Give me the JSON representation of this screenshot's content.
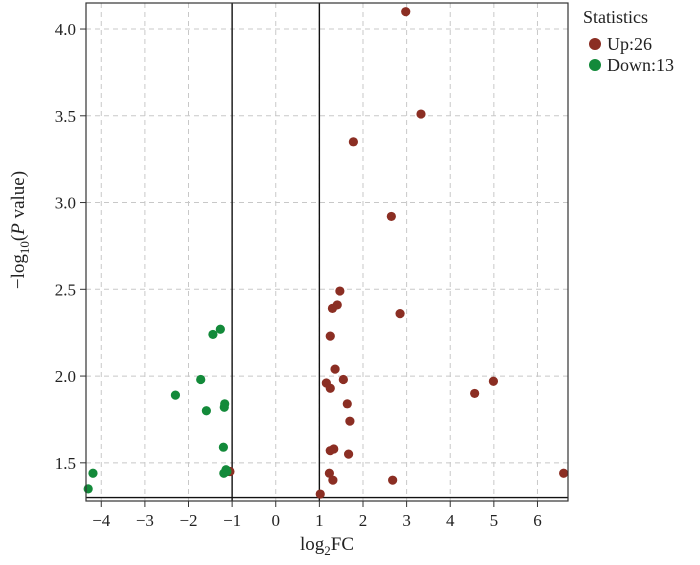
{
  "chart_data": {
    "type": "scatter",
    "xlabel": {
      "base": "log",
      "sub": "2",
      "rest": "FC"
    },
    "ylabel": {
      "minus": "−log",
      "sub": "10",
      "open": "(",
      "italic": "P",
      "rest": " value)"
    },
    "xlim": [
      -4.35,
      6.7
    ],
    "ylim": [
      1.28,
      4.15
    ],
    "x_ticks": [
      -4,
      -3,
      -2,
      -1,
      0,
      1,
      2,
      3,
      4,
      5,
      6
    ],
    "x_tick_labels": [
      "−4",
      "−3",
      "−2",
      "−1",
      "0",
      "1",
      "2",
      "3",
      "4",
      "5",
      "6"
    ],
    "y_ticks": [
      1.5,
      2.0,
      2.5,
      3.0,
      3.5,
      4.0
    ],
    "y_tick_labels": [
      "1.5",
      "2.0",
      "2.5",
      "3.0",
      "3.5",
      "4.0"
    ],
    "grid": true,
    "vlines": [
      -1,
      1
    ],
    "hline": 1.3,
    "legend": {
      "title": "Statistics",
      "position": "right-outside-top",
      "entries": [
        {
          "label": "Up:26",
          "color": "#8b2e23"
        },
        {
          "label": "Down:13",
          "color": "#138a3a"
        }
      ]
    },
    "series": [
      {
        "name": "Up:26",
        "color": "#8b2e23",
        "points": [
          [
            2.98,
            4.1
          ],
          [
            3.33,
            3.51
          ],
          [
            1.78,
            3.35
          ],
          [
            2.65,
            2.92
          ],
          [
            2.85,
            2.36
          ],
          [
            1.47,
            2.49
          ],
          [
            1.41,
            2.41
          ],
          [
            1.3,
            2.39
          ],
          [
            1.25,
            2.23
          ],
          [
            1.36,
            2.04
          ],
          [
            1.55,
            1.98
          ],
          [
            1.16,
            1.96
          ],
          [
            1.25,
            1.93
          ],
          [
            1.64,
            1.84
          ],
          [
            1.7,
            1.74
          ],
          [
            4.99,
            1.97
          ],
          [
            4.56,
            1.9
          ],
          [
            1.33,
            1.58
          ],
          [
            1.25,
            1.57
          ],
          [
            1.67,
            1.55
          ],
          [
            1.23,
            1.44
          ],
          [
            1.31,
            1.4
          ],
          [
            2.68,
            1.4
          ],
          [
            6.6,
            1.44
          ],
          [
            1.02,
            1.32
          ],
          [
            -1.05,
            1.45
          ]
        ]
      },
      {
        "name": "Down:13",
        "color": "#138a3a",
        "points": [
          [
            -1.27,
            2.27
          ],
          [
            -1.44,
            2.24
          ],
          [
            -1.72,
            1.98
          ],
          [
            -2.3,
            1.89
          ],
          [
            -1.17,
            1.84
          ],
          [
            -1.18,
            1.82
          ],
          [
            -1.59,
            1.8
          ],
          [
            -1.2,
            1.59
          ],
          [
            -1.14,
            1.46
          ],
          [
            -1.19,
            1.44
          ],
          [
            -4.19,
            1.44
          ],
          [
            -4.3,
            1.35
          ],
          [
            -1.12,
            1.45
          ]
        ]
      }
    ]
  }
}
